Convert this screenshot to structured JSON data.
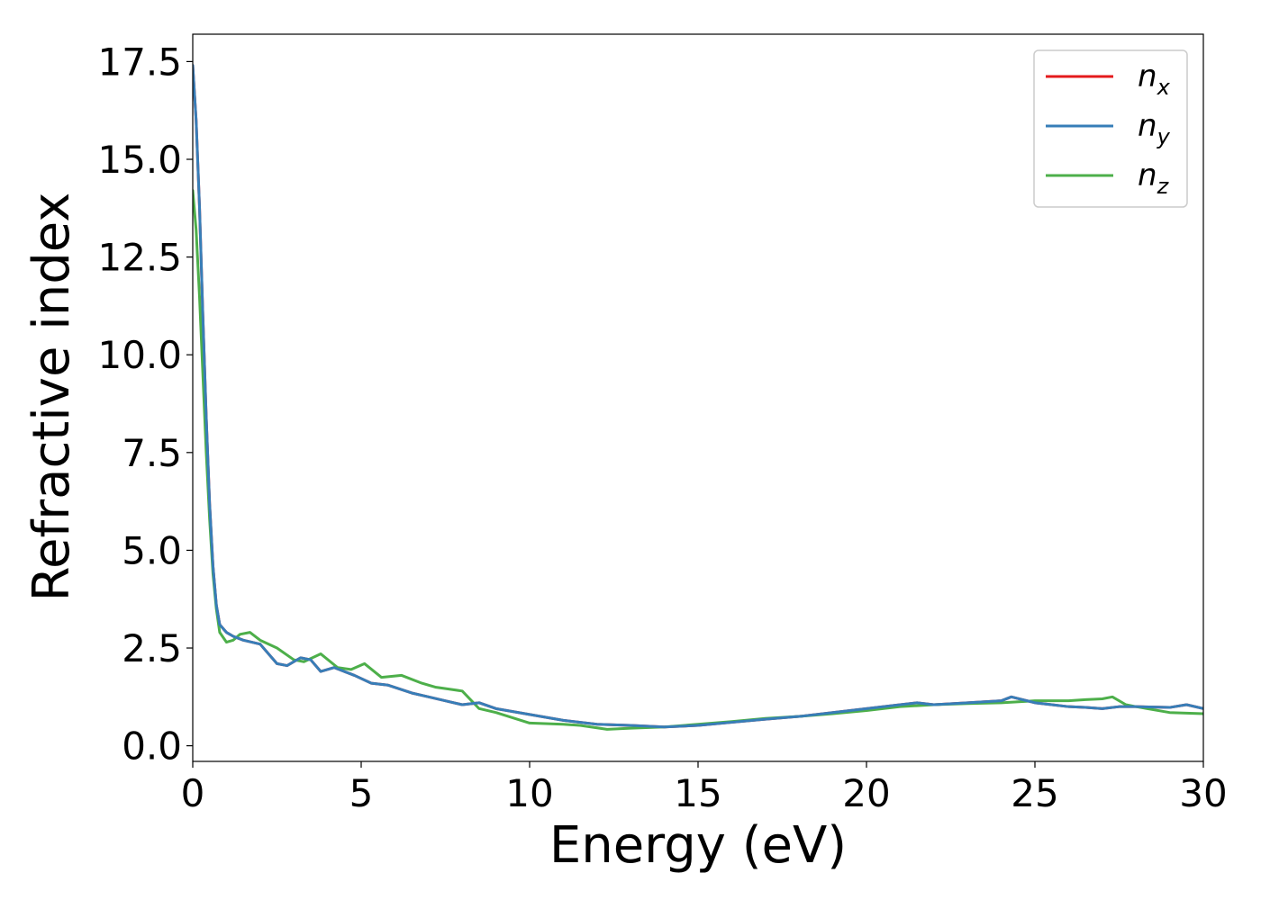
{
  "chart_data": {
    "type": "line",
    "xlabel": "Energy (eV)",
    "ylabel": "Refractive index",
    "xlim": [
      0,
      30
    ],
    "ylim": [
      -0.4,
      18.2
    ],
    "xticks": [
      "0",
      "5",
      "10",
      "15",
      "20",
      "25",
      "30"
    ],
    "yticks": [
      "0.0",
      "2.5",
      "5.0",
      "7.5",
      "10.0",
      "12.5",
      "15.0",
      "17.5"
    ],
    "legend_position": "top-right",
    "colors": {
      "nx": "#e41a1c",
      "ny": "#377eb8",
      "nz": "#4daf4a"
    },
    "series": [
      {
        "key": "nx",
        "name": "n",
        "sub": "x",
        "x": [
          0,
          0.1,
          0.2,
          0.3,
          0.4,
          0.5,
          0.6,
          0.7,
          0.8,
          1.0,
          1.2,
          1.5,
          2.0,
          2.5,
          2.8,
          3.2,
          3.5,
          3.8,
          4.2,
          4.8,
          5.3,
          5.8,
          6.5,
          7.0,
          7.5,
          8.0,
          8.5,
          9.0,
          10.0,
          11.0,
          12.0,
          13.0,
          14.0,
          15.0,
          16.0,
          17.0,
          18.0,
          19.0,
          20.0,
          21.0,
          21.5,
          22.0,
          23.0,
          24.0,
          24.3,
          25.0,
          25.5,
          26.0,
          26.5,
          27.0,
          27.5,
          28.0,
          29.0,
          29.5,
          30.0
        ],
        "y": [
          17.4,
          16.0,
          13.8,
          11.0,
          8.4,
          6.2,
          4.6,
          3.6,
          3.1,
          2.9,
          2.8,
          2.7,
          2.6,
          2.1,
          2.05,
          2.25,
          2.2,
          1.9,
          2.0,
          1.8,
          1.6,
          1.55,
          1.35,
          1.25,
          1.15,
          1.05,
          1.1,
          0.95,
          0.8,
          0.65,
          0.55,
          0.52,
          0.48,
          0.52,
          0.6,
          0.68,
          0.75,
          0.85,
          0.95,
          1.05,
          1.1,
          1.05,
          1.1,
          1.15,
          1.25,
          1.1,
          1.05,
          1.0,
          0.98,
          0.95,
          1.0,
          1.0,
          0.98,
          1.05,
          0.95
        ]
      },
      {
        "key": "ny",
        "name": "n",
        "sub": "y",
        "x": [
          0,
          0.1,
          0.2,
          0.3,
          0.4,
          0.5,
          0.6,
          0.7,
          0.8,
          1.0,
          1.2,
          1.5,
          2.0,
          2.5,
          2.8,
          3.2,
          3.5,
          3.8,
          4.2,
          4.8,
          5.3,
          5.8,
          6.5,
          7.0,
          7.5,
          8.0,
          8.5,
          9.0,
          10.0,
          11.0,
          12.0,
          13.0,
          14.0,
          15.0,
          16.0,
          17.0,
          18.0,
          19.0,
          20.0,
          21.0,
          21.5,
          22.0,
          23.0,
          24.0,
          24.3,
          25.0,
          25.5,
          26.0,
          26.5,
          27.0,
          27.5,
          28.0,
          29.0,
          29.5,
          30.0
        ],
        "y": [
          17.4,
          16.0,
          13.8,
          11.0,
          8.4,
          6.2,
          4.6,
          3.6,
          3.1,
          2.9,
          2.8,
          2.7,
          2.6,
          2.1,
          2.05,
          2.25,
          2.2,
          1.9,
          2.0,
          1.8,
          1.6,
          1.55,
          1.35,
          1.25,
          1.15,
          1.05,
          1.1,
          0.95,
          0.8,
          0.65,
          0.55,
          0.52,
          0.48,
          0.52,
          0.6,
          0.68,
          0.75,
          0.85,
          0.95,
          1.05,
          1.1,
          1.05,
          1.1,
          1.15,
          1.25,
          1.1,
          1.05,
          1.0,
          0.98,
          0.95,
          1.0,
          1.0,
          0.98,
          1.05,
          0.95
        ]
      },
      {
        "key": "nz",
        "name": "n",
        "sub": "z",
        "x": [
          0,
          0.1,
          0.2,
          0.3,
          0.4,
          0.5,
          0.6,
          0.7,
          0.8,
          1.0,
          1.2,
          1.4,
          1.7,
          2.0,
          2.5,
          3.0,
          3.3,
          3.8,
          4.3,
          4.7,
          5.1,
          5.6,
          6.2,
          6.8,
          7.2,
          7.6,
          8.0,
          8.5,
          9.0,
          10.0,
          11.0,
          11.5,
          12.3,
          13.0,
          14.0,
          15.0,
          16.0,
          17.0,
          18.0,
          19.0,
          20.0,
          21.0,
          22.0,
          23.0,
          24.0,
          25.0,
          25.5,
          26.0,
          26.5,
          27.0,
          27.3,
          27.7,
          28.0,
          29.0,
          30.0
        ],
        "y": [
          14.2,
          13.2,
          11.5,
          9.5,
          7.5,
          5.8,
          4.4,
          3.5,
          2.9,
          2.65,
          2.7,
          2.85,
          2.9,
          2.7,
          2.5,
          2.2,
          2.15,
          2.35,
          2.0,
          1.95,
          2.1,
          1.75,
          1.8,
          1.6,
          1.5,
          1.45,
          1.4,
          0.95,
          0.85,
          0.58,
          0.55,
          0.52,
          0.42,
          0.45,
          0.48,
          0.55,
          0.62,
          0.7,
          0.75,
          0.82,
          0.9,
          1.0,
          1.05,
          1.08,
          1.1,
          1.15,
          1.15,
          1.15,
          1.18,
          1.2,
          1.25,
          1.05,
          1.0,
          0.85,
          0.82
        ]
      }
    ]
  }
}
